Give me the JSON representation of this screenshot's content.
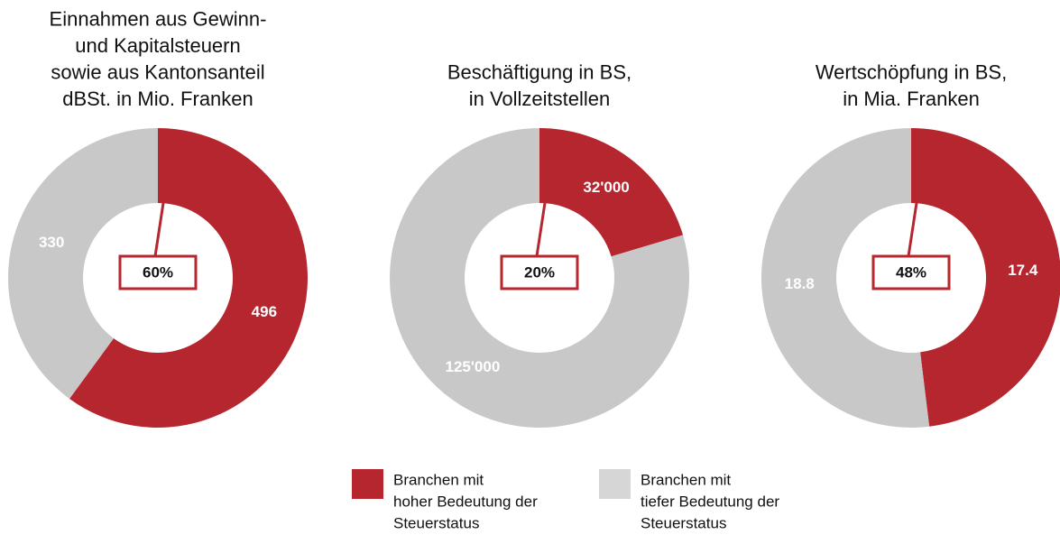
{
  "chart_data": [
    {
      "type": "pie",
      "title": [
        "Einnahmen aus Gewinn-",
        "und Kapitalsteuern",
        "sowie aus Kantonsanteil",
        "dBSt. in Mio. Franken"
      ],
      "values": [
        496,
        330
      ],
      "colors": [
        "#b5262f",
        "#c8c8c8"
      ],
      "center_value": 60,
      "center_label": "60%"
    },
    {
      "type": "pie",
      "title": [
        "Beschäftigung in BS,",
        "in Vollzeitstellen"
      ],
      "values": [
        32000,
        125000
      ],
      "value_labels": [
        "32'000",
        "125'000"
      ],
      "colors": [
        "#b5262f",
        "#c8c8c8"
      ],
      "center_value": 20,
      "center_label": "20%"
    },
    {
      "type": "pie",
      "title": [
        "Wertschöpfung in BS,",
        "in Mia. Franken"
      ],
      "values": [
        17.4,
        18.8
      ],
      "colors": [
        "#b5262f",
        "#c8c8c8"
      ],
      "center_value": 48,
      "center_label": "48%"
    }
  ],
  "legend": [
    {
      "label": [
        "Branchen mit",
        "hoher Bedeutung der",
        "Steuerstatus"
      ],
      "color": "#b5262f"
    },
    {
      "label": [
        "Branchen mit",
        "tiefer Bedeutung der",
        "Steuerstatus"
      ],
      "color": "#d6d6d6"
    }
  ]
}
